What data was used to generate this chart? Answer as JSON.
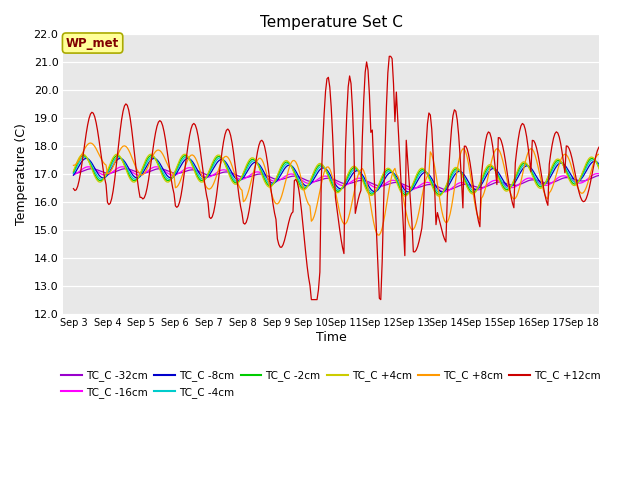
{
  "title": "Temperature Set C",
  "xlabel": "Time",
  "ylabel": "Temperature (C)",
  "ylim": [
    12.0,
    22.0
  ],
  "yticks": [
    12.0,
    13.0,
    14.0,
    15.0,
    16.0,
    17.0,
    18.0,
    19.0,
    20.0,
    21.0,
    22.0
  ],
  "bg_color": "#e8e8e8",
  "series": [
    {
      "label": "TC_C -32cm",
      "color": "#9900cc"
    },
    {
      "label": "TC_C -16cm",
      "color": "#ff00ff"
    },
    {
      "label": "TC_C -8cm",
      "color": "#0000cc"
    },
    {
      "label": "TC_C -4cm",
      "color": "#00cccc"
    },
    {
      "label": "TC_C -2cm",
      "color": "#00cc00"
    },
    {
      "label": "TC_C +4cm",
      "color": "#cccc00"
    },
    {
      "label": "TC_C +8cm",
      "color": "#ff9900"
    },
    {
      "label": "TC_C +12cm",
      "color": "#cc0000"
    }
  ],
  "xtick_labels": [
    "Sep 3",
    "Sep 4",
    "Sep 5",
    "Sep 6",
    "Sep 7",
    "Sep 8",
    "Sep 9",
    "Sep 10",
    "Sep 11",
    "Sep 12",
    "Sep 13",
    "Sep 14",
    "Sep 15",
    "Sep 16",
    "Sep 17",
    "Sep 18"
  ],
  "wp_met_box_color": "#ffff99",
  "wp_met_text_color": "#800000"
}
